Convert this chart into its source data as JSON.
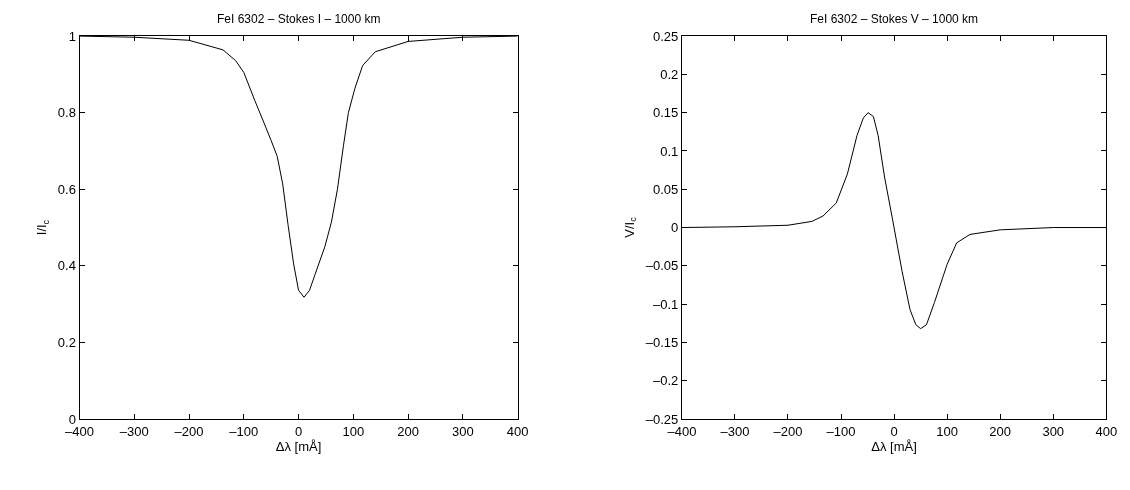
{
  "chart_data": [
    {
      "type": "line",
      "title": "FeI 6302 – Stokes I – 1000 km",
      "xlabel": "Δλ [mÅ]",
      "ylabel": "I/I$_{c}$",
      "marker": "none",
      "line_style": "solid",
      "xlim": [
        -400,
        400
      ],
      "ylim": [
        0,
        1
      ],
      "xticks": [
        {
          "value": -400,
          "label": "–400"
        },
        {
          "value": -300,
          "label": "–300"
        },
        {
          "value": -200,
          "label": "–200"
        },
        {
          "value": -100,
          "label": "–100"
        },
        0,
        100,
        200,
        300,
        400
      ],
      "yticks": [
        0,
        0.2,
        0.4,
        0.6,
        0.8,
        1
      ],
      "series": [
        {
          "color": "#000000",
          "x": [
            -400,
            -300,
            -200,
            -138,
            -115,
            -100,
            -80,
            -63,
            -50,
            -39,
            -29,
            -19,
            -9,
            0,
            10,
            20,
            30,
            48,
            60,
            71,
            82,
            91,
            103,
            117,
            140,
            200,
            300,
            400
          ],
          "values": [
            1.0,
            0.997,
            0.989,
            0.964,
            0.936,
            0.905,
            0.832,
            0.773,
            0.727,
            0.686,
            0.614,
            0.505,
            0.405,
            0.336,
            0.318,
            0.336,
            0.377,
            0.45,
            0.514,
            0.6,
            0.714,
            0.8,
            0.864,
            0.923,
            0.959,
            0.986,
            0.997,
            1.0
          ]
        }
      ]
    },
    {
      "type": "line",
      "title": "FeI 6302 – Stokes V – 1000 km",
      "xlabel": "Δλ [mÅ]",
      "ylabel": "V/I$_{c}$",
      "marker": "none",
      "line_style": "solid",
      "xlim": [
        -400,
        400
      ],
      "ylim": [
        -0.25,
        0.25
      ],
      "xticks": [
        {
          "value": -400,
          "label": "–400"
        },
        {
          "value": -300,
          "label": "–300"
        },
        {
          "value": -200,
          "label": "–200"
        },
        {
          "value": -100,
          "label": "–100"
        },
        0,
        100,
        200,
        300,
        400
      ],
      "yticks": [
        {
          "value": -0.25,
          "label": "–0.25"
        },
        {
          "value": -0.2,
          "label": "–0.2"
        },
        {
          "value": -0.15,
          "label": "–0.15"
        },
        {
          "value": -0.1,
          "label": "–0.1"
        },
        {
          "value": -0.05,
          "label": "–0.05"
        },
        0,
        0.05,
        0.1,
        0.15,
        0.2,
        0.25
      ],
      "series": [
        {
          "color": "#000000",
          "x": [
            -400,
            -300,
            -200,
            -155,
            -134,
            -109,
            -88,
            -70,
            -58,
            -49,
            -39,
            -30,
            -18,
            -3,
            15,
            30,
            41,
            50,
            61,
            76,
            100,
            118,
            143,
            200,
            300,
            400
          ],
          "values": [
            0,
            0.001,
            0.003,
            0.008,
            0.015,
            0.032,
            0.07,
            0.12,
            0.143,
            0.15,
            0.145,
            0.12,
            0.066,
            0.011,
            -0.057,
            -0.107,
            -0.127,
            -0.132,
            -0.127,
            -0.098,
            -0.048,
            -0.02,
            -0.009,
            -0.003,
            0,
            0
          ]
        }
      ]
    }
  ]
}
